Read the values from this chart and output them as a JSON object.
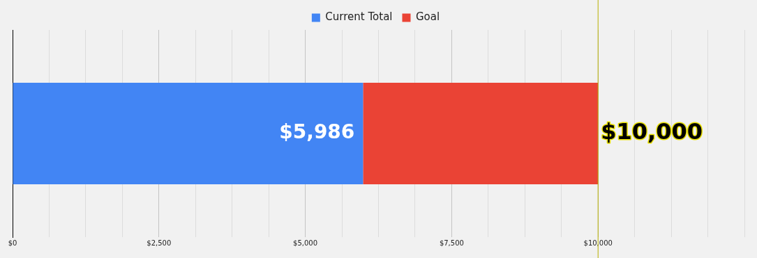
{
  "chart_data": {
    "type": "bar",
    "orientation": "horizontal",
    "stacked": true,
    "categories": [
      null
    ],
    "series": [
      {
        "name": "Current Total",
        "color": "#4285f4",
        "values": [
          5986
        ],
        "value_labels": [
          "$5,986"
        ]
      },
      {
        "name": "Goal",
        "color": "#ea4335",
        "values": [
          4014
        ]
      }
    ],
    "totals": [
      "$10,000"
    ],
    "xlim": [
      0,
      12500
    ],
    "xticks": [
      {
        "value": 0,
        "label": "$0"
      },
      {
        "value": 625,
        "label": null
      },
      {
        "value": 1250,
        "label": null
      },
      {
        "value": 1875,
        "label": null
      },
      {
        "value": 2500,
        "label": "$2,500"
      },
      {
        "value": 3125,
        "label": null
      },
      {
        "value": 3750,
        "label": null
      },
      {
        "value": 4375,
        "label": null
      },
      {
        "value": 5000,
        "label": "$5,000"
      },
      {
        "value": 5625,
        "label": null
      },
      {
        "value": 6250,
        "label": null
      },
      {
        "value": 6875,
        "label": null
      },
      {
        "value": 7500,
        "label": "$7,500"
      },
      {
        "value": 8125,
        "label": null
      },
      {
        "value": 8750,
        "label": null
      },
      {
        "value": 9375,
        "label": null
      },
      {
        "value": 10000,
        "label": "$10,000"
      },
      {
        "value": 10625,
        "label": null
      },
      {
        "value": 11250,
        "label": null
      },
      {
        "value": 11875,
        "label": null
      },
      {
        "value": 12500,
        "label": null
      }
    ],
    "ref_lines": [
      {
        "axis": "x",
        "value": 10000,
        "color": "#b8b000"
      }
    ],
    "grid": "x",
    "legend": "top",
    "tick_labels": "x"
  }
}
